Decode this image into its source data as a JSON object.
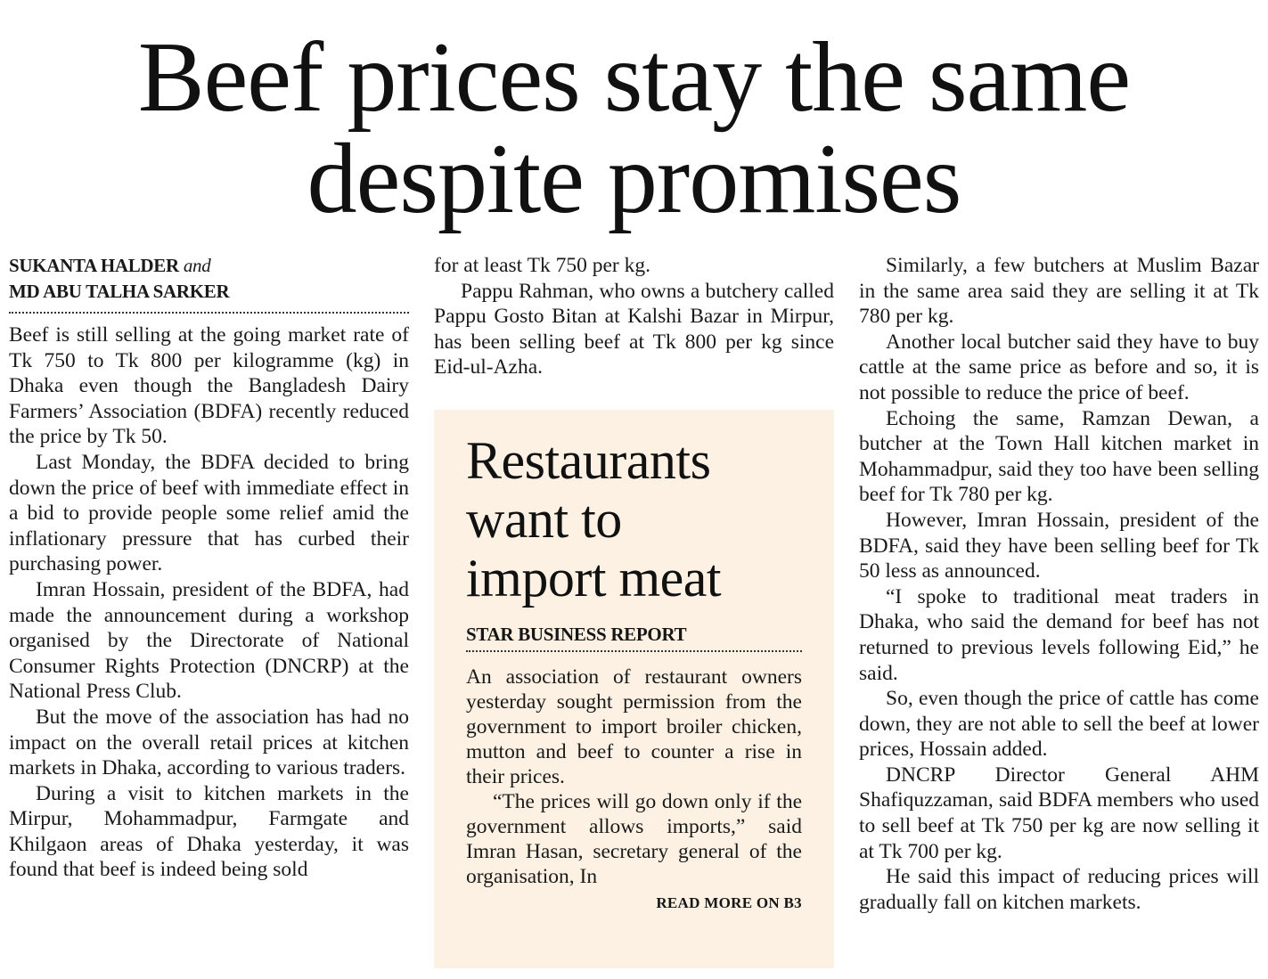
{
  "headline": {
    "line1": "Beef prices stay the same",
    "line2": "despite promises"
  },
  "byline": {
    "author1": "SUKANTA HALDER",
    "connector": "and",
    "author2": "MD ABU TALHA SARKER"
  },
  "column1": [
    "Beef is still selling at the going market rate of Tk 750 to Tk 800 per kilogramme (kg) in Dhaka even though the Bangladesh Dairy Farmers’ Association (BDFA) recently reduced the price by Tk 50.",
    "Last Monday, the BDFA decided to bring down the price of beef with immediate effect in a bid to provide people some relief amid the inflationary pressure that has curbed their purchasing power.",
    "Imran Hossain, president of the BDFA, had made the announcement during a workshop organised by the Directorate of National Consumer Rights Protection (DNCRP) at the National Press Club.",
    "But the move of the association has had no impact on the overall retail prices at kitchen markets in Dhaka, according to various traders.",
    "During a visit to kitchen markets in the Mirpur, Mohammadpur, Farmgate and Khilgaon areas of Dhaka yesterday, it was found that beef is indeed being sold"
  ],
  "column2": [
    "for at least Tk 750 per kg.",
    "Pappu Rahman, who owns a butchery called Pappu Gosto Bitan at Kalshi Bazar in Mirpur, has been selling beef at Tk 800 per kg since Eid-ul-Azha."
  ],
  "sidebar": {
    "title_line1": "Restaurants",
    "title_line2": "want to",
    "title_line3": "import meat",
    "byline": "STAR BUSINESS REPORT",
    "paragraphs": [
      "An association of restaurant owners yesterday sought permission from the government to import broiler chicken, mutton and beef to counter a rise in their prices.",
      "“The prices will go down only if the government allows imports,” said Imran Hasan, secretary general of the organisation, In"
    ],
    "read_more": "READ MORE ON B3",
    "background": "#fcf1e3"
  },
  "column3": [
    "Similarly, a few butchers at Muslim Bazar in the same area said they are selling it at Tk 780 per kg.",
    "Another local butcher said they have to buy cattle at the same price as before and so, it is not possible to reduce the price of beef.",
    "Echoing the same, Ramzan Dewan, a butcher at the Town Hall kitchen market in Mohammadpur, said they too have been selling beef for Tk 780 per kg.",
    "However, Imran Hossain, president of the BDFA, said they have been selling beef for Tk 50 less as announced.",
    "“I spoke to traditional meat traders in Dhaka, who said the demand for beef has not returned to previous levels following Eid,” he said.",
    "So, even though the price of cattle has come down, they are not able to sell the beef at lower prices, Hossain added.",
    "DNCRP Director General AHM Shafiquzzaman, said BDFA members who used to sell beef at Tk 750 per kg are now selling it at Tk 700 per kg.",
    "He said this impact of reducing prices will gradually fall on kitchen markets."
  ]
}
